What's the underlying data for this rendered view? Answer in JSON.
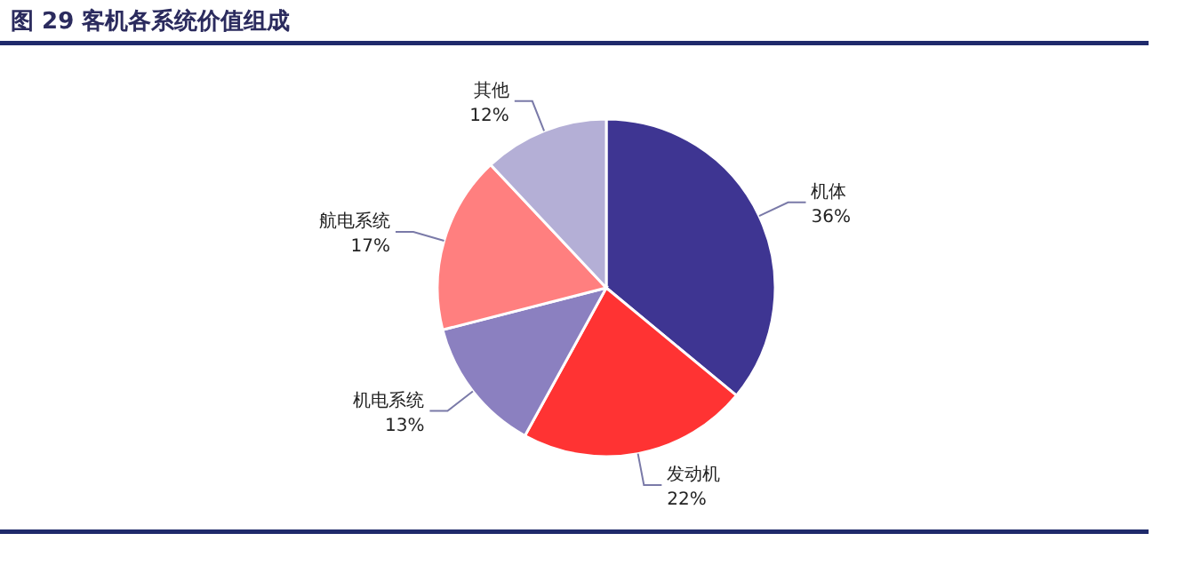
{
  "chart_data": {
    "type": "pie",
    "title": "图 29 客机各系统价值组成",
    "categories": [
      "机体",
      "发动机",
      "机电系统",
      "航电系统",
      "其他"
    ],
    "values": [
      36,
      22,
      13,
      17,
      12
    ],
    "value_labels": [
      "36%",
      "22%",
      "13%",
      "17%",
      "12%"
    ],
    "colors": [
      "#3e3592",
      "#ff3333",
      "#8b80c0",
      "#ff7f7f",
      "#b4afd6"
    ]
  }
}
